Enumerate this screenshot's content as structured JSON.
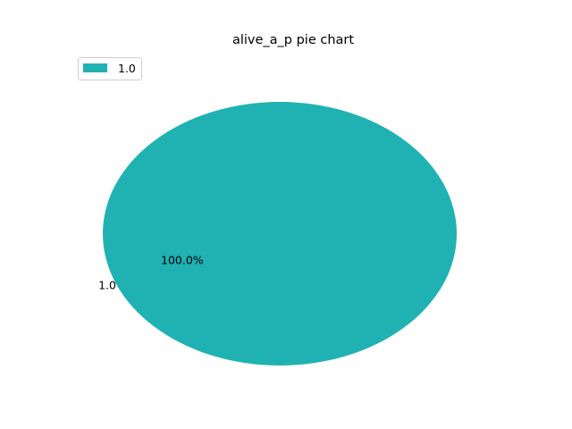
{
  "chart_data": {
    "type": "pie",
    "title": "alive_a_p pie chart",
    "labels": [
      "1.0"
    ],
    "values": [
      100.0
    ],
    "percent_labels": [
      "100.0%"
    ],
    "colors": [
      "#20b2b2"
    ],
    "legend": {
      "placement": "top-left",
      "entries": [
        "1.0"
      ]
    }
  }
}
